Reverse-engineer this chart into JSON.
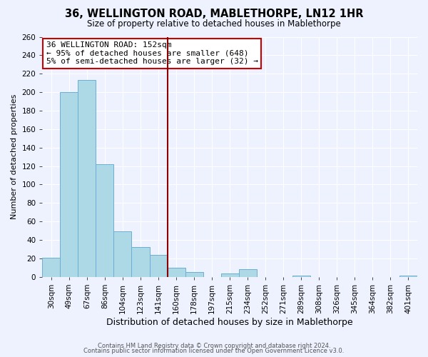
{
  "title": "36, WELLINGTON ROAD, MABLETHORPE, LN12 1HR",
  "subtitle": "Size of property relative to detached houses in Mablethorpe",
  "xlabel": "Distribution of detached houses by size in Mablethorpe",
  "ylabel": "Number of detached properties",
  "footer_line1": "Contains HM Land Registry data © Crown copyright and database right 2024.",
  "footer_line2": "Contains public sector information licensed under the Open Government Licence v3.0.",
  "bin_labels": [
    "30sqm",
    "49sqm",
    "67sqm",
    "86sqm",
    "104sqm",
    "123sqm",
    "141sqm",
    "160sqm",
    "178sqm",
    "197sqm",
    "215sqm",
    "234sqm",
    "252sqm",
    "271sqm",
    "289sqm",
    "308sqm",
    "326sqm",
    "345sqm",
    "364sqm",
    "382sqm",
    "401sqm"
  ],
  "bin_counts": [
    21,
    200,
    213,
    122,
    49,
    32,
    24,
    10,
    5,
    0,
    4,
    8,
    0,
    0,
    1,
    0,
    0,
    0,
    0,
    0,
    1
  ],
  "bar_color": "#add8e6",
  "bar_edge_color": "#6baed6",
  "bg_color": "#eef2ff",
  "grid_color": "#ffffff",
  "vline_color": "#8b0000",
  "vline_x_index": 7,
  "annotation_title": "36 WELLINGTON ROAD: 152sqm",
  "annotation_line1": "← 95% of detached houses are smaller (648)",
  "annotation_line2": "5% of semi-detached houses are larger (32) →",
  "annotation_box_color": "#ffffff",
  "annotation_border_color": "#cc0000",
  "ylim": [
    0,
    260
  ],
  "yticks": [
    0,
    20,
    40,
    60,
    80,
    100,
    120,
    140,
    160,
    180,
    200,
    220,
    240,
    260
  ],
  "title_fontsize": 10.5,
  "subtitle_fontsize": 8.5,
  "xlabel_fontsize": 9,
  "ylabel_fontsize": 8,
  "tick_fontsize": 7.5,
  "annot_fontsize": 8,
  "footer_fontsize": 6
}
